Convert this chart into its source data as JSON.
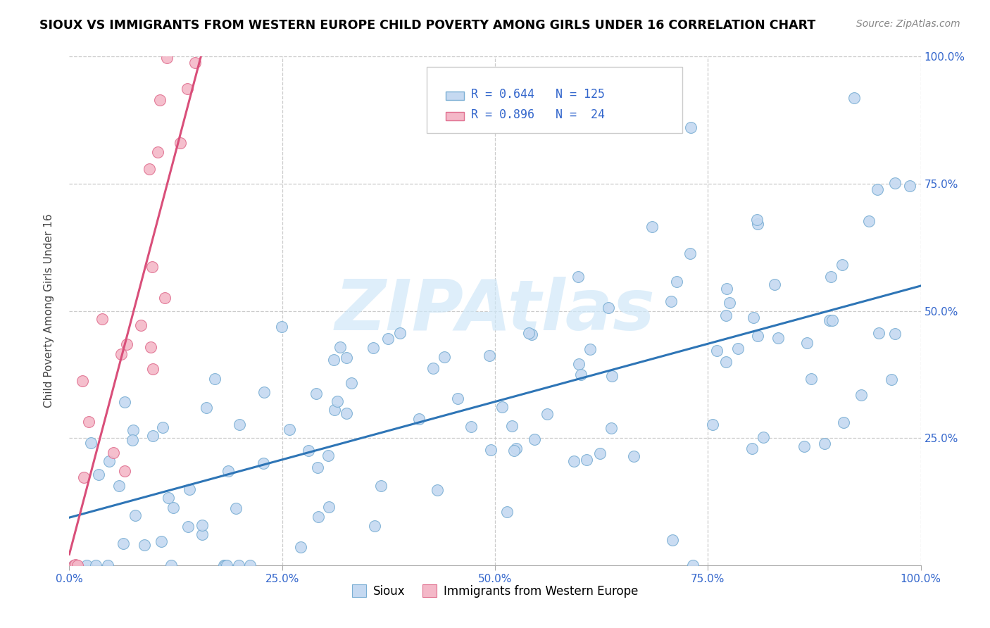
{
  "title": "SIOUX VS IMMIGRANTS FROM WESTERN EUROPE CHILD POVERTY AMONG GIRLS UNDER 16 CORRELATION CHART",
  "source": "Source: ZipAtlas.com",
  "ylabel": "Child Poverty Among Girls Under 16",
  "sioux_color": "#c5d9f1",
  "sioux_edge_color": "#7bafd4",
  "immigrants_color": "#f4b8c8",
  "immigrants_edge_color": "#e07090",
  "regression_sioux_color": "#2e75b6",
  "regression_immigrants_color": "#d94f7a",
  "R_sioux": 0.644,
  "N_sioux": 125,
  "R_immigrants": 0.896,
  "N_immigrants": 24,
  "watermark_text": "ZIPAtlas",
  "watermark_color": "#d0e8f8",
  "legend_r_color": "#3366cc",
  "bottom_legend_labels": [
    "Sioux",
    "Immigrants from Western Europe"
  ]
}
